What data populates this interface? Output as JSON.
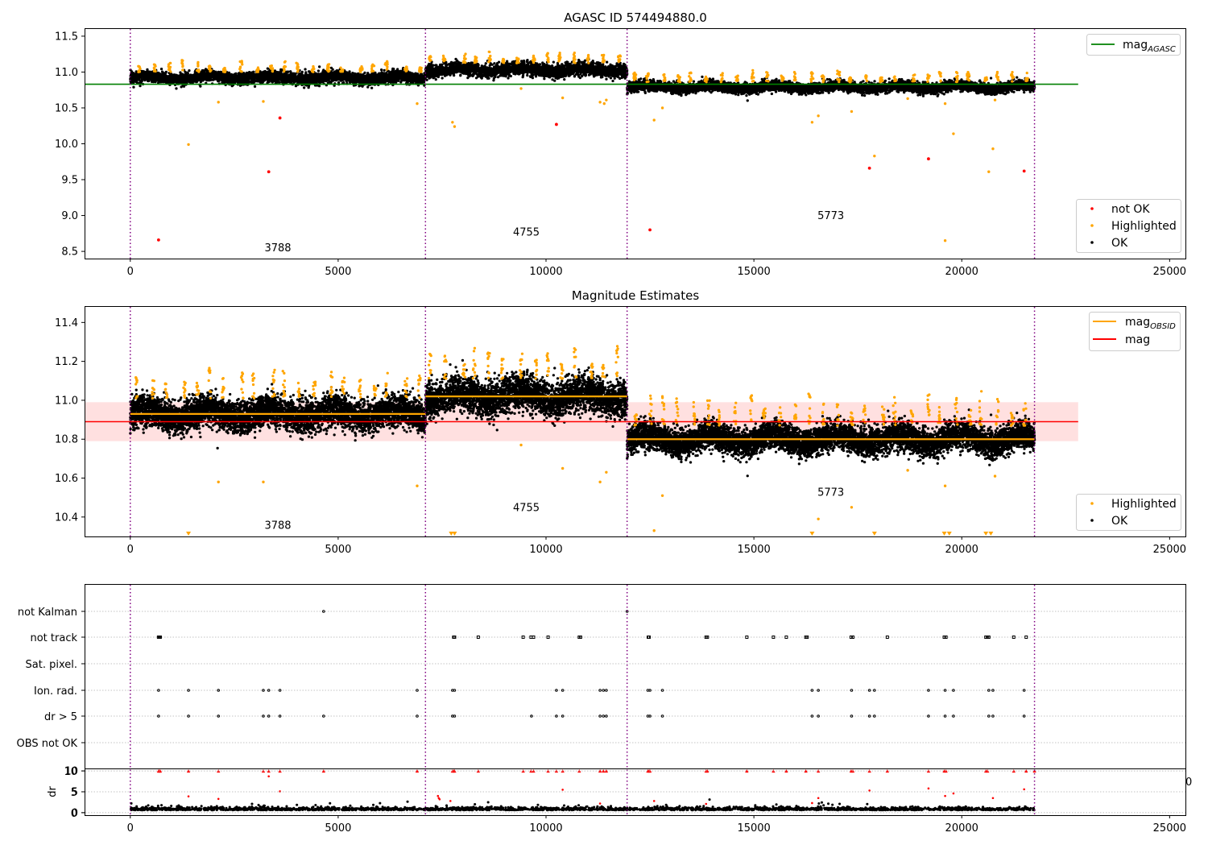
{
  "colors": {
    "ok": "#000000",
    "not_ok": "#ff0000",
    "highlighted": "#ffa500",
    "mag_agasc": "#008000",
    "mag_obsid": "#ffa500",
    "mag": "#ff0000",
    "band": "#ffcccc",
    "obsid_line": "#800080",
    "grid": "#b0b0b0"
  },
  "chart_data": [
    {
      "type": "scatter",
      "title": "AGASC ID 574494880.0",
      "xlim": [
        -1100,
        25400
      ],
      "ylim": [
        8.4,
        11.6
      ],
      "xticks": [
        0,
        5000,
        10000,
        15000,
        20000,
        25000
      ],
      "xtick_labels": [
        "0",
        "5000",
        "10000",
        "15000",
        "20000",
        "25000"
      ],
      "yticks": [
        8.5,
        9.0,
        9.5,
        10.0,
        10.5,
        11.0,
        11.5
      ],
      "ytick_labels": [
        "8.5",
        "9.0",
        "9.5",
        "10.0",
        "10.5",
        "11.0",
        "11.5"
      ],
      "obsid_boundaries": [
        0,
        7100,
        11950,
        21750
      ],
      "obsid_labels": [
        {
          "text": "3788",
          "x": 3550,
          "y": 8.5
        },
        {
          "text": "4755",
          "x": 9525,
          "y": 8.72
        },
        {
          "text": "5773",
          "x": 16850,
          "y": 8.95
        }
      ],
      "segments": [
        {
          "x0": 0,
          "x1": 7100,
          "level": 10.92,
          "spread": 0.04
        },
        {
          "x0": 7100,
          "x1": 11950,
          "level": 11.03,
          "spread": 0.045
        },
        {
          "x0": 11950,
          "x1": 21750,
          "level": 10.79,
          "spread": 0.035
        }
      ],
      "hlines": [
        {
          "name": "mag_agasc",
          "y": 10.83,
          "x0": -1100,
          "x1": 22800
        }
      ],
      "not_ok_points": [
        [
          680,
          8.66
        ],
        [
          3330,
          9.61
        ],
        [
          3600,
          10.36
        ],
        [
          10250,
          10.27
        ],
        [
          12500,
          8.8
        ],
        [
          17780,
          9.66
        ],
        [
          19200,
          9.79
        ],
        [
          21500,
          9.62
        ]
      ],
      "highlighted_outliers": [
        [
          1400,
          9.99
        ],
        [
          2120,
          10.58
        ],
        [
          3200,
          10.59
        ],
        [
          6900,
          10.56
        ],
        [
          7750,
          10.3
        ],
        [
          7800,
          10.24
        ],
        [
          9400,
          10.77
        ],
        [
          10400,
          10.64
        ],
        [
          11300,
          10.58
        ],
        [
          11400,
          10.56
        ],
        [
          11450,
          10.61
        ],
        [
          12600,
          10.33
        ],
        [
          12800,
          10.5
        ],
        [
          16400,
          10.3
        ],
        [
          16550,
          10.39
        ],
        [
          17350,
          10.45
        ],
        [
          17900,
          9.83
        ],
        [
          18700,
          10.63
        ],
        [
          19600,
          8.65
        ],
        [
          19600,
          10.56
        ],
        [
          19800,
          10.14
        ],
        [
          20650,
          9.61
        ],
        [
          20750,
          9.93
        ],
        [
          20800,
          10.61
        ]
      ],
      "legend": {
        "placement": "lower-right",
        "entries": [
          {
            "label": "not OK",
            "color": "#ff0000"
          },
          {
            "label": "Highlighted",
            "color": "#ffa500"
          },
          {
            "label": "OK",
            "color": "#000000"
          }
        ]
      },
      "line_legend": {
        "placement": "upper-right",
        "entries": [
          {
            "label": "mag",
            "sub": "AGASC",
            "color": "#008000"
          }
        ]
      }
    },
    {
      "type": "scatter",
      "title": "Magnitude Estimates",
      "xlim": [
        -1100,
        25400
      ],
      "ylim": [
        10.3,
        11.48
      ],
      "xticks": [
        0,
        5000,
        10000,
        15000,
        20000,
        25000
      ],
      "xtick_labels": [
        "0",
        "5000",
        "10000",
        "15000",
        "20000",
        "25000"
      ],
      "yticks": [
        10.4,
        10.6,
        10.8,
        11.0,
        11.2,
        11.4
      ],
      "ytick_labels": [
        "10.4",
        "10.6",
        "10.8",
        "11.0",
        "11.2",
        "11.4"
      ],
      "obsid_boundaries": [
        0,
        7100,
        11950,
        21750
      ],
      "obsid_labels": [
        {
          "text": "3788",
          "x": 3550,
          "y": 10.34
        },
        {
          "text": "4755",
          "x": 9525,
          "y": 10.43
        },
        {
          "text": "5773",
          "x": 16850,
          "y": 10.51
        }
      ],
      "segments": [
        {
          "x0": 0,
          "x1": 7100,
          "level": 10.93,
          "spread": 0.04
        },
        {
          "x0": 7100,
          "x1": 11950,
          "level": 11.02,
          "spread": 0.045
        },
        {
          "x0": 11950,
          "x1": 21750,
          "level": 10.8,
          "spread": 0.035
        }
      ],
      "hlines": [
        {
          "name": "mag",
          "y": 10.89,
          "x0": -1100,
          "x1": 22800
        }
      ],
      "obsid_mag_lines": [
        {
          "x0": 0,
          "x1": 7100,
          "y": 10.93
        },
        {
          "x0": 7100,
          "x1": 11950,
          "y": 11.02
        },
        {
          "x0": 11950,
          "x1": 21750,
          "y": 10.8
        }
      ],
      "band": {
        "y0": 10.79,
        "y1": 10.99,
        "x0": -1100,
        "x1": 22800
      },
      "highlighted_outliers": [
        [
          2120,
          10.58
        ],
        [
          3200,
          10.58
        ],
        [
          6900,
          10.56
        ],
        [
          9400,
          10.77
        ],
        [
          10400,
          10.65
        ],
        [
          11300,
          10.58
        ],
        [
          11450,
          10.63
        ],
        [
          12600,
          10.33
        ],
        [
          12800,
          10.51
        ],
        [
          16550,
          10.39
        ],
        [
          17350,
          10.45
        ],
        [
          18700,
          10.64
        ],
        [
          19600,
          10.56
        ],
        [
          20800,
          10.61
        ]
      ],
      "offscale_markers": [
        1400,
        7720,
        7800,
        16400,
        17900,
        19580,
        19700,
        20580,
        20700
      ],
      "legend": {
        "placement": "lower-right",
        "entries": [
          {
            "label": "Highlighted",
            "color": "#ffa500"
          },
          {
            "label": "OK",
            "color": "#000000"
          }
        ]
      },
      "line_legend": {
        "placement": "upper-right",
        "entries": [
          {
            "label": "mag",
            "sub": "OBSID",
            "color": "#ffa500"
          },
          {
            "label": "mag",
            "sub": "",
            "color": "#ff0000"
          }
        ]
      }
    },
    {
      "type": "scatter",
      "title": "",
      "xlim": [
        -1100,
        25400
      ],
      "categories": [
        "not Kalman",
        "not track",
        "Sat. pixel.",
        "Ion. rad.",
        "dr > 5",
        "OBS not OK"
      ],
      "flags": {
        "not Kalman": [
          4650,
          11950
        ],
        "not track": [
          680,
          700,
          720,
          7780,
          7800,
          8370,
          9450,
          9640,
          9700,
          10050,
          10800,
          10830,
          12460,
          12480,
          13850,
          13880,
          14830,
          15470,
          15780,
          16250,
          16280,
          17340,
          17380,
          18210,
          19580,
          19620,
          20580,
          20620,
          20650,
          21250,
          21550
        ],
        "Sat. pixel.": [],
        "Ion. rad.": [
          680,
          1400,
          2120,
          3200,
          3330,
          3600,
          6900,
          7750,
          7800,
          10250,
          10400,
          11300,
          11380,
          11450,
          12450,
          12500,
          12800,
          16400,
          16550,
          17350,
          17780,
          17900,
          19200,
          19600,
          19800,
          20650,
          20750,
          21500
        ],
        "dr > 5": [
          680,
          1400,
          2120,
          3200,
          3330,
          3600,
          4650,
          6900,
          7750,
          7800,
          9650,
          10250,
          10400,
          11300,
          11380,
          11450,
          12450,
          12500,
          12800,
          16400,
          16550,
          17350,
          17780,
          17900,
          19200,
          19600,
          19800,
          20650,
          20750,
          21500
        ],
        "OBS not OK": []
      },
      "obsid_boundaries": [
        0,
        7100,
        11950,
        21750
      ]
    },
    {
      "type": "scatter",
      "title": "",
      "xlim": [
        -1100,
        25400
      ],
      "ylim": [
        -0.6,
        10.4
      ],
      "ylabel": "dr",
      "xticks": [
        0,
        5000,
        10000,
        15000,
        20000,
        25000
      ],
      "xtick_labels": [
        "0",
        "5000",
        "10000",
        "15000",
        "20000",
        "25000"
      ],
      "yticks": [
        0,
        5,
        10
      ],
      "ytick_labels": [
        "0",
        "5",
        "10"
      ],
      "obsid_boundaries": [
        0,
        7100,
        11950,
        21750
      ],
      "baseline": {
        "level": 0.6,
        "spread": 0.35
      },
      "capped_markers": [
        680,
        700,
        720,
        1400,
        2120,
        3200,
        3330,
        3600,
        4650,
        6900,
        7750,
        7780,
        7800,
        8370,
        9450,
        9640,
        9700,
        10050,
        10250,
        10400,
        10800,
        11300,
        11380,
        11450,
        12450,
        12480,
        12500,
        13850,
        13880,
        14830,
        15470,
        15780,
        16250,
        16550,
        17340,
        17380,
        17780,
        18210,
        19200,
        19580,
        19620,
        20580,
        20620,
        21250,
        21550,
        21750
      ],
      "scatter_red": [
        [
          1400,
          3.9
        ],
        [
          2120,
          3.3
        ],
        [
          3330,
          8.7
        ],
        [
          3600,
          5.1
        ],
        [
          7400,
          4.0
        ],
        [
          7420,
          3.5
        ],
        [
          7440,
          3.2
        ],
        [
          7700,
          2.8
        ],
        [
          10400,
          5.5
        ],
        [
          11300,
          2.2
        ],
        [
          12600,
          2.8
        ],
        [
          13850,
          2.1
        ],
        [
          16550,
          3.5
        ],
        [
          16400,
          2.3
        ],
        [
          17780,
          5.3
        ],
        [
          19200,
          5.8
        ],
        [
          19600,
          4.0
        ],
        [
          19800,
          4.6
        ],
        [
          20750,
          3.5
        ],
        [
          21500,
          5.6
        ]
      ],
      "edge_label": "0"
    }
  ]
}
